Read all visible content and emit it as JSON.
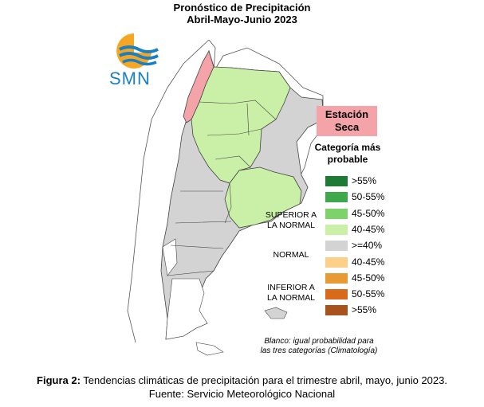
{
  "title": {
    "line1": "Pronóstico de Precipitación",
    "line2": "Abril-Mayo-Junio 2023"
  },
  "logo": {
    "text": "SMN",
    "icon": "smn-sun-waves-logo"
  },
  "estacion_seca": {
    "line1": "Estación",
    "line2": "Seca",
    "color": "#f4a3a8"
  },
  "legend": {
    "title_line1": "Categoría más",
    "title_line2": "probable",
    "groups": {
      "superior_line1": "SUPERIOR A",
      "superior_line2": "LA NORMAL",
      "normal": "NORMAL",
      "inferior_line1": "INFERIOR A",
      "inferior_line2": "LA NORMAL"
    },
    "items": [
      {
        "label": ">55%",
        "color": "#1e7a34"
      },
      {
        "label": "50-55%",
        "color": "#3ea84a"
      },
      {
        "label": "45-50%",
        "color": "#7dd36a"
      },
      {
        "label": "40-45%",
        "color": "#c9f0a6"
      },
      {
        "label": ">=40%",
        "color": "#d3d3d3"
      },
      {
        "label": "40-45%",
        "color": "#fdd08a"
      },
      {
        "label": "45-50%",
        "color": "#e89a35"
      },
      {
        "label": "50-55%",
        "color": "#d96a1c"
      },
      {
        "label": ">55%",
        "color": "#a8521c"
      }
    ]
  },
  "note": {
    "line1": "Blanco: igual probabilidad para",
    "line2": "las tres categorías (Climatología)"
  },
  "caption": {
    "bold": "Figura 2:",
    "text": " Tendencias climáticas de precipitación para el trimestre abril, mayo, junio 2023.",
    "line2": "Fuente: Servicio Meteorológico Nacional"
  }
}
